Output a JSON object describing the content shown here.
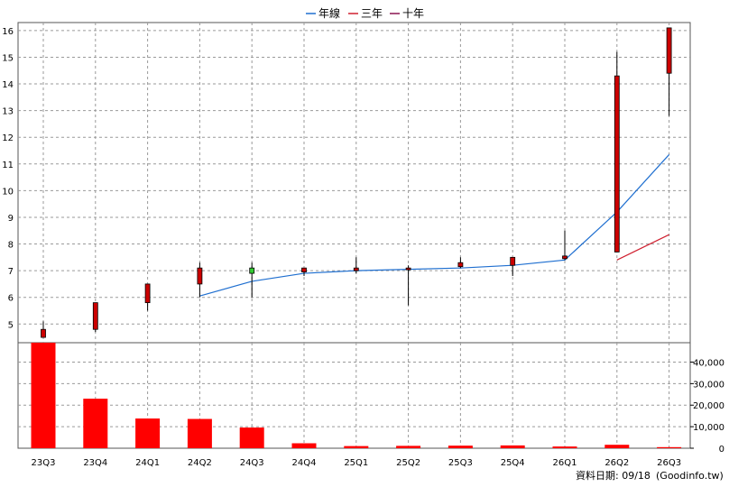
{
  "chart_data": {
    "type": "candlestick",
    "legend": [
      {
        "label": "年線",
        "color": "#1f6fd0"
      },
      {
        "label": "三年",
        "color": "#d02030"
      },
      {
        "label": "十年",
        "color": "#8a1450"
      }
    ],
    "categories": [
      "23Q3",
      "23Q4",
      "24Q1",
      "24Q2",
      "24Q3",
      "24Q4",
      "25Q1",
      "25Q2",
      "25Q3",
      "25Q4",
      "26Q1",
      "26Q2",
      "26Q3"
    ],
    "price": {
      "ylim": [
        4.3,
        16.3
      ],
      "ticks": [
        5,
        6,
        7,
        8,
        9,
        10,
        11,
        12,
        13,
        14,
        15,
        16
      ],
      "candles": [
        {
          "open": 4.5,
          "close": 4.8,
          "high": 5.1,
          "low": 4.5
        },
        {
          "open": 4.8,
          "close": 5.8,
          "high": 5.8,
          "low": 4.7
        },
        {
          "open": 5.8,
          "close": 6.5,
          "high": 6.5,
          "low": 5.5
        },
        {
          "open": 6.5,
          "close": 7.1,
          "high": 7.3,
          "low": 6.0
        },
        {
          "open": 7.1,
          "close": 6.9,
          "high": 7.3,
          "low": 6.0
        },
        {
          "open": 6.95,
          "close": 7.1,
          "high": 7.1,
          "low": 6.8
        },
        {
          "open": 7.0,
          "close": 7.1,
          "high": 7.5,
          "low": 6.9
        },
        {
          "open": 7.05,
          "close": 7.1,
          "high": 7.2,
          "low": 5.7
        },
        {
          "open": 7.15,
          "close": 7.3,
          "high": 7.5,
          "low": 7.1
        },
        {
          "open": 7.2,
          "close": 7.5,
          "high": 7.5,
          "low": 6.8
        },
        {
          "open": 7.45,
          "close": 7.55,
          "high": 8.5,
          "low": 7.4
        },
        {
          "open": 7.7,
          "close": 14.3,
          "high": 15.2,
          "low": 7.7
        },
        {
          "open": 14.4,
          "close": 16.1,
          "high": 16.1,
          "low": 12.8
        }
      ],
      "series": [
        {
          "name": "年線",
          "color": "#1f6fd0",
          "values": [
            null,
            null,
            null,
            6.05,
            6.6,
            6.9,
            7.0,
            7.05,
            7.1,
            7.2,
            7.4,
            9.2,
            11.35
          ]
        },
        {
          "name": "三年",
          "color": "#d02030",
          "values": [
            null,
            null,
            null,
            null,
            null,
            null,
            null,
            null,
            null,
            null,
            null,
            7.4,
            8.35
          ]
        }
      ]
    },
    "volume": {
      "ylim": [
        0,
        49000
      ],
      "ticks": [
        0,
        10000,
        20000,
        30000,
        40000
      ],
      "tick_labels": [
        "0",
        "10,000",
        "20,000",
        "30,000",
        "40,000"
      ],
      "values": [
        49500,
        23000,
        13800,
        13600,
        9600,
        2300,
        1000,
        1100,
        1200,
        1300,
        800,
        1600,
        500
      ],
      "color": "#ff0000"
    },
    "up_color": "#cc0000",
    "down_color": "#33cc33",
    "grid": true
  },
  "footer": {
    "date_text": "資料日期: 09/18",
    "source_text": "(Goodinfo.tw)"
  }
}
